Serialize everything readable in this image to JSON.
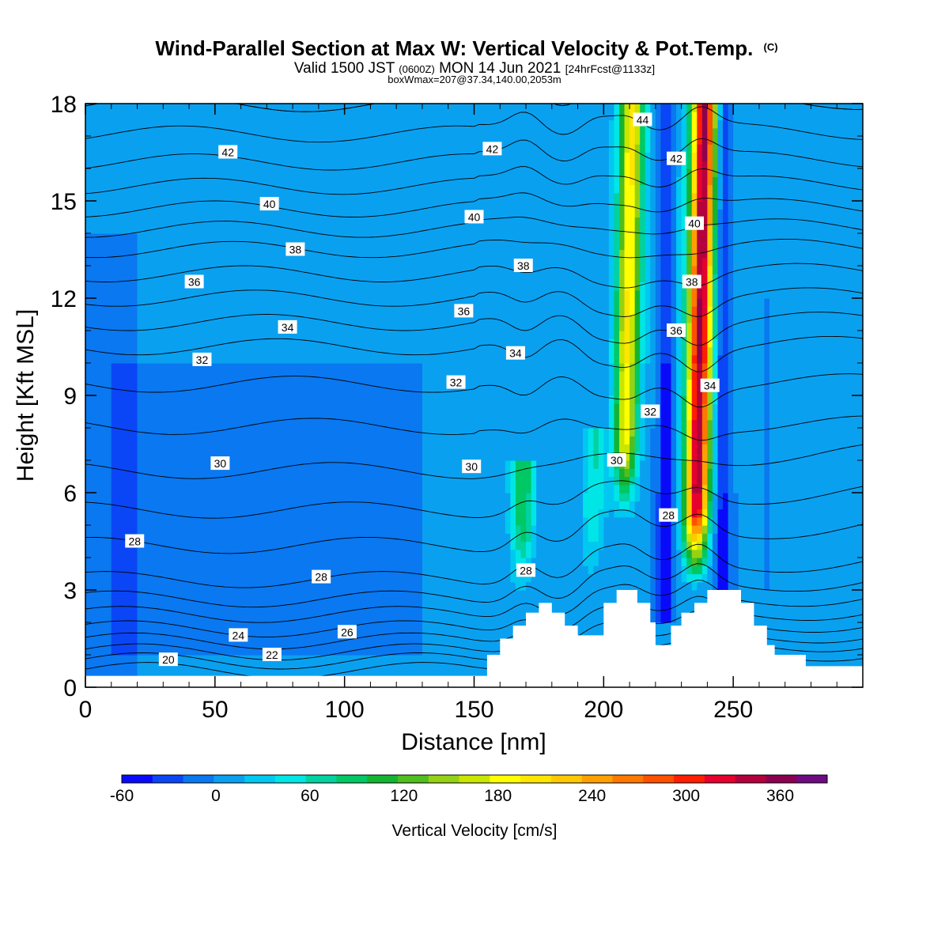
{
  "chart_data": {
    "type": "heatmap",
    "title": "Wind-Parallel Section at Max W: Vertical Velocity & Pot.Temp.",
    "title_mark": "(C)",
    "subtitle_parts": [
      "Valid 1500 JST",
      "(0600Z)",
      "MON 14 Jun 2021",
      "[24hrFcst@1133z]"
    ],
    "subtitle2": "boxWmax=207@37.34,140.00,2053m",
    "xlabel": "Distance [nm]",
    "ylabel": "Height [Kft MSL]",
    "xlim": [
      0,
      300
    ],
    "ylim": [
      0,
      18
    ],
    "x_ticks": [
      0,
      50,
      100,
      150,
      200,
      250
    ],
    "y_ticks": [
      0,
      3,
      6,
      9,
      12,
      15,
      18
    ],
    "colorbar": {
      "label": "Vertical Velocity [cm/s]",
      "min": -60,
      "max": 390,
      "step": 20,
      "tick_values": [
        -60,
        0,
        60,
        120,
        180,
        240,
        300,
        360
      ],
      "colors": [
        "#0a0afa",
        "#0a46f5",
        "#0a78f0",
        "#0aa0f0",
        "#00c8f0",
        "#00e6e6",
        "#00d2a0",
        "#00c864",
        "#14b432",
        "#50be1e",
        "#96d214",
        "#c8e600",
        "#ffff00",
        "#ffe600",
        "#ffc800",
        "#ffa000",
        "#ff7800",
        "#ff5000",
        "#ff1e00",
        "#e6002d",
        "#b4003c",
        "#8c0050",
        "#6e0a82"
      ]
    },
    "background_w": 0,
    "updrafts": [
      {
        "x": 209,
        "z_bottom": 5,
        "z_top": 18,
        "w_peak": 190
      },
      {
        "x": 237,
        "z_bottom": 3,
        "z_top": 18,
        "w_peak": 345
      },
      {
        "x": 170,
        "z_bottom": 2.5,
        "z_top": 7,
        "w_peak": 95
      },
      {
        "x": 197,
        "z_bottom": 2.8,
        "z_top": 8,
        "w_peak": 60
      }
    ],
    "downdrafts": [
      {
        "x": 224,
        "z_bottom": 2,
        "z_top": 18,
        "w_peak": -60
      },
      {
        "x": 246,
        "z_bottom": 3,
        "z_top": 18,
        "w_peak": -55
      }
    ],
    "terrain": [
      [
        0,
        0.35
      ],
      [
        155,
        0.35
      ],
      [
        155,
        1
      ],
      [
        160,
        1
      ],
      [
        160,
        1.5
      ],
      [
        165,
        1.5
      ],
      [
        165,
        1.9
      ],
      [
        170,
        1.9
      ],
      [
        170,
        2.3
      ],
      [
        175,
        2.3
      ],
      [
        175,
        2.6
      ],
      [
        180,
        2.6
      ],
      [
        180,
        2.3
      ],
      [
        185,
        2.3
      ],
      [
        185,
        1.9
      ],
      [
        190,
        1.9
      ],
      [
        190,
        1.6
      ],
      [
        200,
        1.6
      ],
      [
        200,
        2.6
      ],
      [
        205,
        2.6
      ],
      [
        205,
        3
      ],
      [
        213,
        3
      ],
      [
        213,
        2.6
      ],
      [
        218,
        2.6
      ],
      [
        218,
        2
      ],
      [
        220,
        2
      ],
      [
        220,
        1.3
      ],
      [
        226,
        1.3
      ],
      [
        226,
        1.9
      ],
      [
        230,
        1.9
      ],
      [
        230,
        2.3
      ],
      [
        235,
        2.3
      ],
      [
        235,
        2.6
      ],
      [
        240,
        2.6
      ],
      [
        240,
        3
      ],
      [
        253,
        3
      ],
      [
        253,
        2.6
      ],
      [
        258,
        2.6
      ],
      [
        258,
        1.9
      ],
      [
        263,
        1.9
      ],
      [
        263,
        1.3
      ],
      [
        266,
        1.3
      ],
      [
        266,
        1
      ],
      [
        278,
        1
      ],
      [
        278,
        0.65
      ],
      [
        300,
        0.65
      ]
    ],
    "theta_contours": {
      "levels": [
        20,
        21,
        22,
        23,
        24,
        25,
        26,
        27,
        28,
        29,
        30,
        31,
        32,
        33,
        34,
        35,
        36,
        37,
        38,
        39,
        40,
        41,
        42,
        43,
        44
      ],
      "profile_points": [
        {
          "z": 0.3,
          "theta": 19.3
        },
        {
          "z": 0.7,
          "theta": 20.6
        },
        {
          "z": 1.2,
          "theta": 22.4
        },
        {
          "z": 1.8,
          "theta": 24.0
        },
        {
          "z": 2.6,
          "theta": 25.8
        },
        {
          "z": 3.5,
          "theta": 27.3
        },
        {
          "z": 4.5,
          "theta": 28.1
        },
        {
          "z": 6.0,
          "theta": 29.5
        },
        {
          "z": 7.5,
          "theta": 30.6
        },
        {
          "z": 9.0,
          "theta": 31.7
        },
        {
          "z": 10.5,
          "theta": 33.0
        },
        {
          "z": 12.0,
          "theta": 35.0
        },
        {
          "z": 13.5,
          "theta": 37.0
        },
        {
          "z": 15.0,
          "theta": 39.4
        },
        {
          "z": 16.5,
          "theta": 41.4
        },
        {
          "z": 18.0,
          "theta": 43.0
        }
      ],
      "labels": [
        {
          "text": "20",
          "x": 32,
          "z": 0.85
        },
        {
          "text": "22",
          "x": 72,
          "z": 1.0
        },
        {
          "text": "24",
          "x": 59,
          "z": 1.6
        },
        {
          "text": "26",
          "x": 101,
          "z": 1.7
        },
        {
          "text": "28",
          "x": 19,
          "z": 4.5
        },
        {
          "text": "28",
          "x": 91,
          "z": 3.4
        },
        {
          "text": "28",
          "x": 170,
          "z": 3.6
        },
        {
          "text": "28",
          "x": 225,
          "z": 5.3
        },
        {
          "text": "30",
          "x": 52,
          "z": 6.9
        },
        {
          "text": "30",
          "x": 149,
          "z": 6.8
        },
        {
          "text": "30",
          "x": 205,
          "z": 7.0
        },
        {
          "text": "32",
          "x": 45,
          "z": 10.1
        },
        {
          "text": "32",
          "x": 143,
          "z": 9.4
        },
        {
          "text": "32",
          "x": 218,
          "z": 8.5
        },
        {
          "text": "34",
          "x": 78,
          "z": 11.1
        },
        {
          "text": "34",
          "x": 166,
          "z": 10.3
        },
        {
          "text": "34",
          "x": 241,
          "z": 9.3
        },
        {
          "text": "36",
          "x": 42,
          "z": 12.5
        },
        {
          "text": "36",
          "x": 146,
          "z": 11.6
        },
        {
          "text": "36",
          "x": 228,
          "z": 11.0
        },
        {
          "text": "38",
          "x": 81,
          "z": 13.5
        },
        {
          "text": "38",
          "x": 169,
          "z": 13.0
        },
        {
          "text": "38",
          "x": 234,
          "z": 12.5
        },
        {
          "text": "40",
          "x": 71,
          "z": 14.9
        },
        {
          "text": "40",
          "x": 150,
          "z": 14.5
        },
        {
          "text": "40",
          "x": 235,
          "z": 14.3
        },
        {
          "text": "42",
          "x": 55,
          "z": 16.5
        },
        {
          "text": "42",
          "x": 157,
          "z": 16.6
        },
        {
          "text": "42",
          "x": 228,
          "z": 16.3
        },
        {
          "text": "44",
          "x": 215,
          "z": 17.5
        }
      ]
    }
  }
}
